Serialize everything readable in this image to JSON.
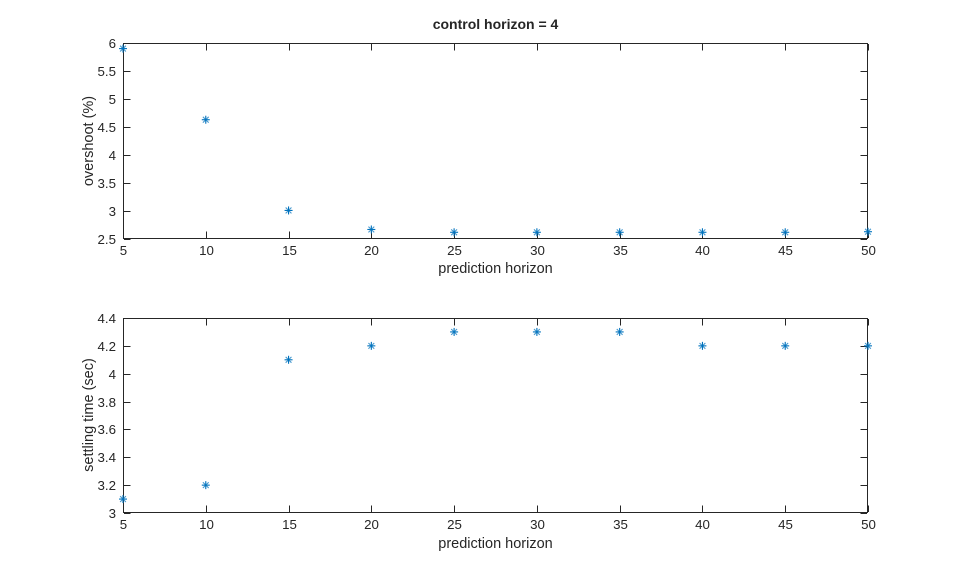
{
  "figure": {
    "background": "#ffffff",
    "axis_color": "#262626",
    "text_color": "#262626",
    "marker_color": "#0072BD"
  },
  "chart_data": [
    {
      "type": "scatter",
      "marker": "asterisk",
      "title": "control horizon = 4",
      "xlabel": "prediction horizon",
      "ylabel": "overshoot (%)",
      "x": [
        5,
        10,
        15,
        20,
        25,
        30,
        35,
        40,
        45,
        50
      ],
      "y": [
        5.9,
        4.63,
        3.01,
        2.67,
        2.62,
        2.62,
        2.62,
        2.62,
        2.62,
        2.63
      ],
      "xlim": [
        5,
        50
      ],
      "ylim": [
        2.5,
        6
      ],
      "xticks": [
        5,
        10,
        15,
        20,
        25,
        30,
        35,
        40,
        45,
        50
      ],
      "yticks": [
        2.5,
        3,
        3.5,
        4,
        4.5,
        5,
        5.5,
        6
      ],
      "grid": false,
      "legend": null
    },
    {
      "type": "scatter",
      "marker": "asterisk",
      "title": "",
      "xlabel": "prediction horizon",
      "ylabel": "settling time (sec)",
      "x": [
        5,
        10,
        15,
        20,
        25,
        30,
        35,
        40,
        45,
        50
      ],
      "y": [
        3.1,
        3.2,
        4.1,
        4.2,
        4.3,
        4.3,
        4.3,
        4.2,
        4.2,
        4.2
      ],
      "xlim": [
        5,
        50
      ],
      "ylim": [
        3,
        4.4
      ],
      "xticks": [
        5,
        10,
        15,
        20,
        25,
        30,
        35,
        40,
        45,
        50
      ],
      "yticks": [
        3,
        3.2,
        3.4,
        3.6,
        3.8,
        4,
        4.2,
        4.4
      ],
      "grid": false,
      "legend": null
    }
  ]
}
